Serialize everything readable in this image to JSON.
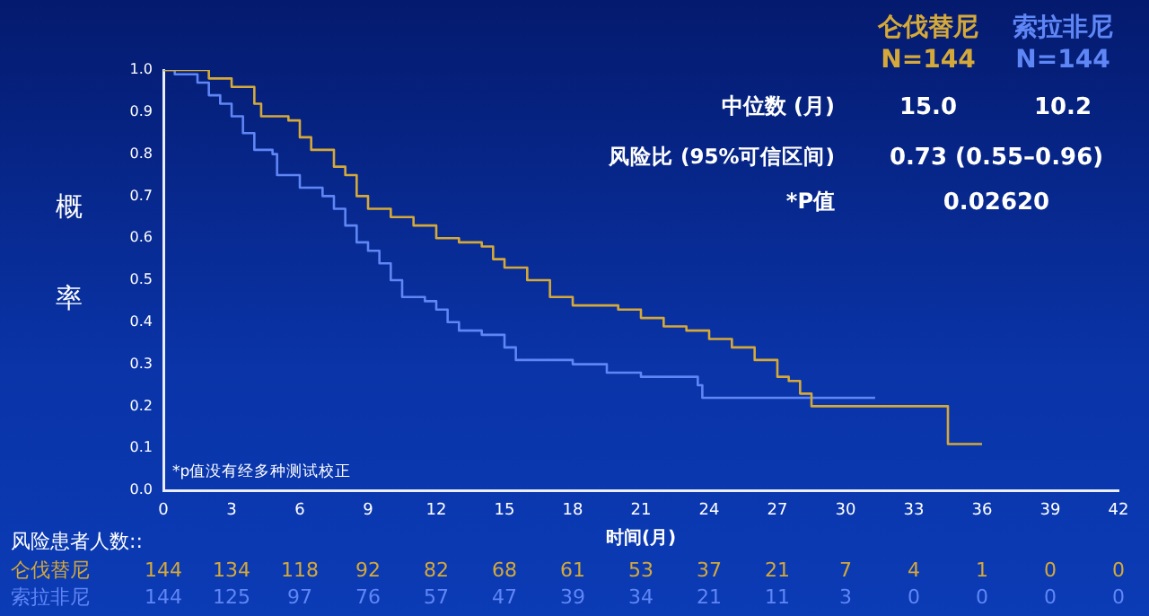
{
  "chart_data": {
    "type": "step",
    "xlabel": "时间(月)",
    "ylabel": "概率",
    "legend": "top right",
    "marker": "none",
    "grid": false,
    "xlim": [
      0,
      42
    ],
    "xticks": [
      0,
      3,
      6,
      9,
      12,
      15,
      18,
      21,
      24,
      27,
      30,
      33,
      36,
      39,
      42
    ],
    "ylim": [
      0,
      1
    ],
    "yticks": [
      {
        "value": 0,
        "label": "0.0"
      },
      0.1,
      0.2,
      0.3,
      0.4,
      0.5,
      0.6,
      0.7,
      0.8,
      0.9,
      {
        "value": 1,
        "label": "1.0"
      }
    ],
    "series": [
      {
        "name": "仑伐替尼",
        "color": "#d4a93a",
        "x": [
          0,
          1.5,
          2,
          3,
          4,
          4.3,
          5.5,
          6,
          6.5,
          7.5,
          8,
          8.5,
          9,
          10,
          11,
          12,
          13,
          14,
          14.5,
          15,
          16,
          17,
          18,
          20,
          21,
          22,
          23,
          24,
          25,
          26,
          27,
          27.5,
          28,
          28.5,
          34.5,
          36
        ],
        "values": [
          1,
          1,
          0.98,
          0.96,
          0.92,
          0.89,
          0.88,
          0.84,
          0.81,
          0.77,
          0.75,
          0.7,
          0.67,
          0.65,
          0.63,
          0.6,
          0.59,
          0.58,
          0.55,
          0.53,
          0.5,
          0.46,
          0.44,
          0.43,
          0.41,
          0.39,
          0.38,
          0.36,
          0.34,
          0.31,
          0.27,
          0.26,
          0.23,
          0.2,
          0.11,
          0.11
        ]
      },
      {
        "name": "索拉非尼",
        "color": "#5f86f5",
        "x": [
          0,
          0.5,
          1.5,
          2,
          2.5,
          3,
          3.5,
          4,
          4.8,
          5,
          6,
          7,
          7.5,
          8,
          8.5,
          9,
          9.5,
          10,
          10.5,
          11.5,
          12,
          12.5,
          13,
          14,
          15,
          15.5,
          18,
          19.5,
          21,
          23,
          23.5,
          23.7,
          31.3
        ],
        "values": [
          1,
          0.99,
          0.97,
          0.94,
          0.92,
          0.89,
          0.85,
          0.81,
          0.8,
          0.75,
          0.72,
          0.7,
          0.67,
          0.63,
          0.59,
          0.57,
          0.54,
          0.5,
          0.46,
          0.45,
          0.43,
          0.4,
          0.38,
          0.37,
          0.34,
          0.31,
          0.3,
          0.28,
          0.27,
          0.27,
          0.25,
          0.22,
          0.22
        ]
      }
    ],
    "annotations": [
      "N=144",
      "N=144",
      "中位数 (月)",
      "15.0",
      "10.2",
      "风险比 (95%可信区间)",
      "0.73 (0.55–0.96)",
      "*P值",
      "0.02620",
      "*p值没有经多种测试校正",
      "风险患者人数::",
      "144 134 118 92 82 68 61 53 37 21 7 4 1 0 0",
      "144 125 97 76 57 47 39 34 21 11 3 0 0 0 0"
    ]
  }
}
